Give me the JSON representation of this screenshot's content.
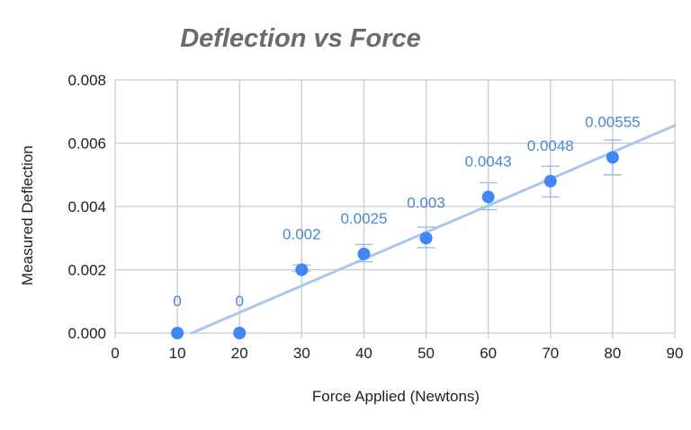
{
  "chart_data": {
    "type": "scatter",
    "title": "Deflection vs Force",
    "xlabel": "Force Applied (Newtons)",
    "ylabel": "Measured Deflection",
    "xlim": [
      0,
      90
    ],
    "ylim": [
      0,
      0.008
    ],
    "x_ticks": [
      "0",
      "10",
      "20",
      "30",
      "40",
      "50",
      "60",
      "70",
      "80",
      "90"
    ],
    "y_ticks": [
      "0.000",
      "0.002",
      "0.004",
      "0.006",
      "0.008"
    ],
    "grid": true,
    "series": [
      {
        "x": [
          10,
          20,
          30,
          40,
          50,
          60,
          70,
          80
        ],
        "y": [
          0,
          0,
          0.002,
          0.0025,
          0.003,
          0.0043,
          0.0048,
          0.00555
        ],
        "labels": [
          "0",
          "0",
          "0.002",
          "0.0025",
          "0.003",
          "0.0043",
          "0.0048",
          "0.00555"
        ],
        "error_low": [
          null,
          null,
          0.00195,
          0.00225,
          0.0027,
          0.0039,
          0.0043,
          0.005
        ],
        "error_high": [
          null,
          null,
          0.00215,
          0.0028,
          0.00335,
          0.00475,
          0.00527,
          0.0061
        ]
      }
    ],
    "trendline": {
      "type": "linear",
      "x_start": 12.3,
      "y_start": 0,
      "x_end": 90,
      "y_end": 0.00656
    },
    "colors": {
      "points": "#4285f4",
      "labels": "#4a86d6",
      "trendline": "#a9c6ef",
      "error_bars": "#9fbde8"
    }
  }
}
